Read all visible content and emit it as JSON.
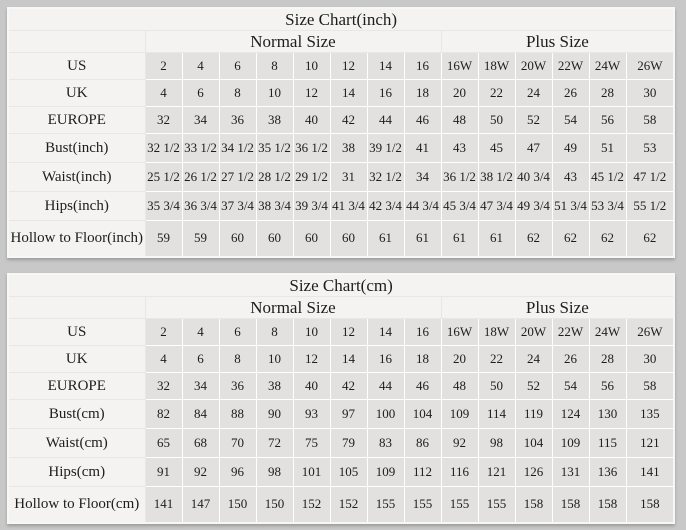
{
  "colors": {
    "page_bg": "#c8c8c8",
    "light_cell": "#f4f3f1",
    "data_cell": "#e3e1e0",
    "grid_line_white": "#ffffff",
    "grid_line_light": "#e8e7e5",
    "text": "#1d1d1d"
  },
  "chart_data": [
    {
      "type": "table",
      "title": "Size Chart(inch)",
      "group_headers": [
        {
          "label": "Normal Size",
          "colspan": 8
        },
        {
          "label": "Plus Size",
          "colspan": 6
        }
      ],
      "rows": [
        {
          "label": "US",
          "values": [
            "2",
            "4",
            "6",
            "8",
            "10",
            "12",
            "14",
            "16",
            "16W",
            "18W",
            "20W",
            "22W",
            "24W",
            "26W"
          ]
        },
        {
          "label": "UK",
          "values": [
            "4",
            "6",
            "8",
            "10",
            "12",
            "14",
            "16",
            "18",
            "20",
            "22",
            "24",
            "26",
            "28",
            "30"
          ]
        },
        {
          "label": "EUROPE",
          "values": [
            "32",
            "34",
            "36",
            "38",
            "40",
            "42",
            "44",
            "46",
            "48",
            "50",
            "52",
            "54",
            "56",
            "58"
          ]
        },
        {
          "label": "Bust(inch)",
          "values": [
            "32 1/2",
            "33 1/2",
            "34 1/2",
            "35 1/2",
            "36 1/2",
            "38",
            "39 1/2",
            "41",
            "43",
            "45",
            "47",
            "49",
            "51",
            "53"
          ]
        },
        {
          "label": "Waist(inch)",
          "values": [
            "25 1/2",
            "26 1/2",
            "27 1/2",
            "28 1/2",
            "29 1/2",
            "31",
            "32 1/2",
            "34",
            "36 1/2",
            "38 1/2",
            "40 3/4",
            "43",
            "45 1/2",
            "47 1/2"
          ]
        },
        {
          "label": "Hips(inch)",
          "values": [
            "35 3/4",
            "36 3/4",
            "37 3/4",
            "38 3/4",
            "39 3/4",
            "41 3/4",
            "42 3/4",
            "44 3/4",
            "45 3/4",
            "47 3/4",
            "49 3/4",
            "51 3/4",
            "53 3/4",
            "55 1/2"
          ]
        },
        {
          "label": "Hollow to Floor(inch)",
          "values": [
            "59",
            "59",
            "60",
            "60",
            "60",
            "60",
            "61",
            "61",
            "61",
            "61",
            "62",
            "62",
            "62",
            "62"
          ]
        }
      ]
    },
    {
      "type": "table",
      "title": "Size Chart(cm)",
      "group_headers": [
        {
          "label": "Normal Size",
          "colspan": 8
        },
        {
          "label": "Plus Size",
          "colspan": 6
        }
      ],
      "rows": [
        {
          "label": "US",
          "values": [
            "2",
            "4",
            "6",
            "8",
            "10",
            "12",
            "14",
            "16",
            "16W",
            "18W",
            "20W",
            "22W",
            "24W",
            "26W"
          ]
        },
        {
          "label": "UK",
          "values": [
            "4",
            "6",
            "8",
            "10",
            "12",
            "14",
            "16",
            "18",
            "20",
            "22",
            "24",
            "26",
            "28",
            "30"
          ]
        },
        {
          "label": "EUROPE",
          "values": [
            "32",
            "34",
            "36",
            "38",
            "40",
            "42",
            "44",
            "46",
            "48",
            "50",
            "52",
            "54",
            "56",
            "58"
          ]
        },
        {
          "label": "Bust(cm)",
          "values": [
            "82",
            "84",
            "88",
            "90",
            "93",
            "97",
            "100",
            "104",
            "109",
            "114",
            "119",
            "124",
            "130",
            "135"
          ]
        },
        {
          "label": "Waist(cm)",
          "values": [
            "65",
            "68",
            "70",
            "72",
            "75",
            "79",
            "83",
            "86",
            "92",
            "98",
            "104",
            "109",
            "115",
            "121"
          ]
        },
        {
          "label": "Hips(cm)",
          "values": [
            "91",
            "92",
            "96",
            "98",
            "101",
            "105",
            "109",
            "112",
            "116",
            "121",
            "126",
            "131",
            "136",
            "141"
          ]
        },
        {
          "label": "Hollow to Floor(cm)",
          "values": [
            "141",
            "147",
            "150",
            "150",
            "152",
            "152",
            "155",
            "155",
            "155",
            "155",
            "158",
            "158",
            "158",
            "158"
          ]
        }
      ]
    }
  ]
}
